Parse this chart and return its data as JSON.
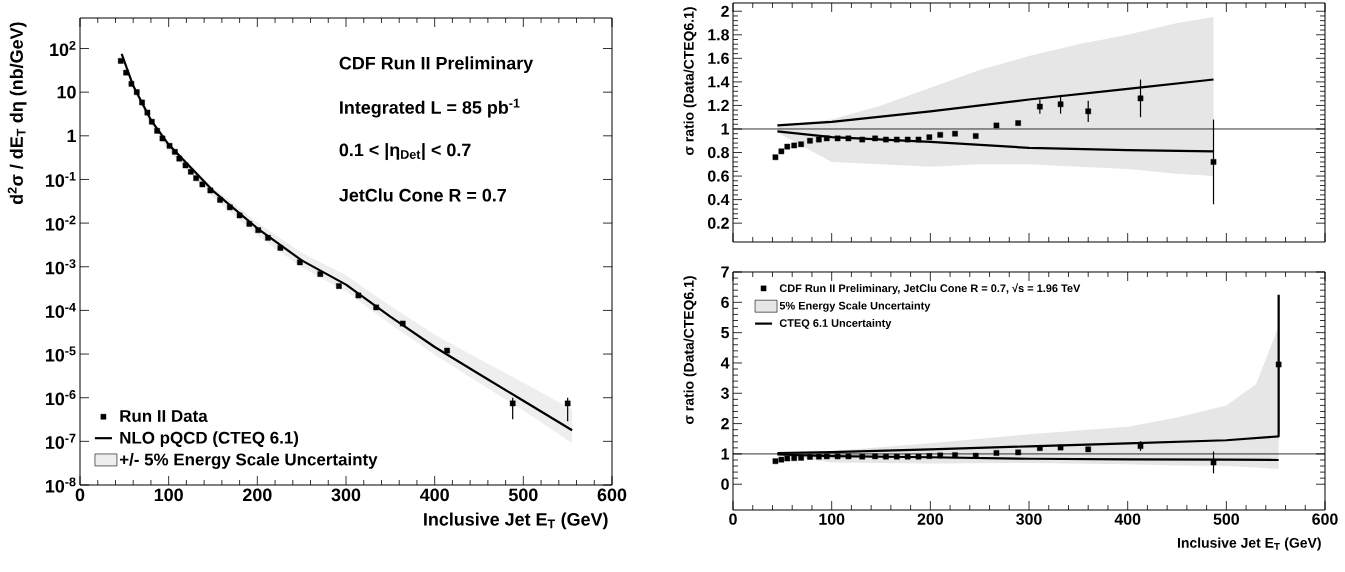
{
  "chart_data": [
    {
      "type": "scatter",
      "xlabel": "Inclusive Jet E$_{T}$ (GeV)",
      "ylabel": "d$^{2}$σ / dE$_{T}$ dη (nb/GeV)",
      "log": "y",
      "legend": "bottom left",
      "xlim": [
        0,
        600
      ],
      "xticks": [
        0,
        100,
        200,
        300,
        400,
        500,
        600
      ],
      "ylim": [
        1e-08,
        500
      ],
      "yticks": [
        {
          "value": 1e-08,
          "label": "10$^{-8}$"
        },
        {
          "value": 1e-07,
          "label": "10$^{-7}$"
        },
        {
          "value": 1e-06,
          "label": "10$^{-6}$"
        },
        {
          "value": 1e-05,
          "label": "10$^{-5}$"
        },
        {
          "value": 0.0001,
          "label": "10$^{-4}$"
        },
        {
          "value": 0.001,
          "label": "10$^{-3}$"
        },
        {
          "value": 0.01,
          "label": "10$^{-2}$"
        },
        {
          "value": 0.1,
          "label": "10$^{-1}$"
        },
        {
          "value": 1,
          "label": "1"
        },
        {
          "value": 10,
          "label": "10"
        },
        {
          "value": 100,
          "label": "10$^{2}$"
        }
      ],
      "annotations": [
        "CDF Run II Preliminary",
        "Integrated L = 85 pb$^{-1}$",
        "0.1 < |η$_{Det}$| < 0.7",
        "JetClu Cone R = 0.7"
      ],
      "series": [
        {
          "name": "Run II Data",
          "type": "scatter",
          "marker": "square",
          "color": "#000000",
          "x": [
            46,
            52,
            58,
            64,
            70,
            76,
            81,
            87,
            93,
            101,
            107,
            112,
            119,
            125,
            131,
            138,
            147,
            158,
            169,
            180,
            191,
            201,
            212,
            226,
            248,
            271,
            292,
            314,
            334,
            364,
            414,
            488,
            550
          ],
          "values": [
            52,
            28,
            15.5,
            10,
            5.8,
            3.4,
            2.1,
            1.3,
            0.87,
            0.59,
            0.43,
            0.3,
            0.21,
            0.15,
            0.107,
            0.077,
            0.056,
            0.034,
            0.023,
            0.015,
            0.0096,
            0.0069,
            0.0046,
            0.0027,
            0.00126,
            0.00068,
            0.00036,
            0.00022,
            0.000117,
            5e-05,
            1.2e-05,
            7.4e-07,
            7.4e-07
          ],
          "errors": [
            null,
            null,
            null,
            null,
            null,
            null,
            null,
            null,
            null,
            null,
            null,
            null,
            null,
            null,
            null,
            null,
            null,
            null,
            null,
            null,
            null,
            null,
            null,
            null,
            null,
            null,
            null,
            null,
            null,
            null,
            null,
            [
              3.2e-07,
              1e-06
            ],
            [
              2.9e-07,
              1e-06
            ]
          ]
        },
        {
          "name": "NLO pQCD (CTEQ 6.1)",
          "type": "line",
          "marker": "none",
          "line_style": "solid",
          "color": "#000000",
          "x": [
            47,
            60,
            80,
            100,
            150,
            200,
            250,
            300,
            350,
            400,
            450,
            500,
            555
          ],
          "values": [
            75,
            14,
            2.3,
            0.63,
            0.055,
            0.0076,
            0.0014,
            0.00039,
            7.2e-05,
            1.45e-05,
            3.5e-06,
            8.5e-07,
            1.8e-07
          ]
        },
        {
          "name": "+/- 5% Energy Scale Uncertainty",
          "type": "area",
          "color": "#eeeeee",
          "x": [
            47,
            60,
            80,
            100,
            150,
            200,
            250,
            300,
            350,
            400,
            450,
            500,
            555
          ],
          "values": [
            null,
            null,
            null,
            null,
            null,
            null,
            null,
            null,
            null,
            null,
            null,
            null,
            null
          ],
          "lower": [
            73,
            11.9,
            1.7,
            0.45,
            0.039,
            0.0052,
            0.00098,
            0.00027,
            4.9e-05,
            9.6e-06,
            2.2e-06,
            5.1e-07,
            9e-08
          ],
          "upper": [
            77,
            14.7,
            2.5,
            0.69,
            0.066,
            0.0103,
            0.0021,
            0.00064,
            0.000126,
            2.8e-05,
            7.7e-06,
            2.2e-06,
            5.4e-07
          ]
        }
      ]
    },
    {
      "type": "scatter",
      "ylabel": "σ ratio (Data/CTEQ6.1)",
      "tick_labels": "y",
      "legend": false,
      "xlim": [
        0,
        600
      ],
      "xticks": [
        0,
        100,
        200,
        300,
        400,
        500,
        600
      ],
      "ylim": [
        0.04,
        2.07
      ],
      "yticks": [
        0.2,
        0.4,
        0.6,
        0.8,
        1,
        1.2,
        1.4,
        1.6,
        1.8,
        2
      ],
      "ref_lines": [
        {
          "axis": "y",
          "value": 1
        }
      ],
      "series": [
        {
          "type": "area",
          "color": "#e6e6e6",
          "x": [
            45,
            100,
            150,
            200,
            250,
            300,
            350,
            400,
            450,
            487
          ],
          "values": [
            null,
            null,
            null,
            null,
            null,
            null,
            null,
            null,
            null,
            null
          ],
          "lower": [
            0.97,
            0.72,
            0.7,
            0.68,
            0.7,
            0.7,
            0.68,
            0.66,
            0.62,
            0.6
          ],
          "upper": [
            1.03,
            1.08,
            1.2,
            1.35,
            1.5,
            1.62,
            1.72,
            1.8,
            1.9,
            1.95
          ]
        },
        {
          "type": "line",
          "marker": "none",
          "line_style": "solid",
          "color": "#000000",
          "x": [
            45,
            100,
            200,
            300,
            400,
            487
          ],
          "values": [
            1.03,
            1.06,
            1.15,
            1.25,
            1.34,
            1.42
          ]
        },
        {
          "type": "line",
          "marker": "none",
          "line_style": "solid",
          "color": "#000000",
          "x": [
            45,
            100,
            200,
            300,
            400,
            487
          ],
          "values": [
            0.98,
            0.93,
            0.89,
            0.84,
            0.82,
            0.81
          ]
        },
        {
          "type": "scatter",
          "marker": "square",
          "color": "#000000",
          "x": [
            43,
            49,
            55,
            62,
            69,
            78,
            87,
            95,
            106,
            117,
            131,
            144,
            155,
            166,
            177,
            188,
            199,
            210,
            225,
            246,
            267,
            289,
            311,
            332,
            360,
            413,
            487
          ],
          "values": [
            0.76,
            0.81,
            0.85,
            0.86,
            0.87,
            0.9,
            0.91,
            0.92,
            0.92,
            0.92,
            0.91,
            0.92,
            0.91,
            0.91,
            0.91,
            0.91,
            0.93,
            0.95,
            0.96,
            0.94,
            1.03,
            1.05,
            1.19,
            1.21,
            1.15,
            1.26,
            0.72
          ],
          "errors": [
            null,
            null,
            null,
            null,
            null,
            null,
            null,
            null,
            null,
            null,
            null,
            null,
            null,
            null,
            null,
            null,
            null,
            null,
            null,
            null,
            null,
            null,
            0.06,
            0.08,
            0.09,
            0.16,
            0.36
          ]
        }
      ]
    },
    {
      "type": "scatter",
      "xlabel": "Inclusive Jet E$_{T}$ (GeV)",
      "ylabel": "σ ratio (Data/CTEQ6.1)",
      "legend": "top left",
      "xlim": [
        0,
        600
      ],
      "xticks": [
        0,
        100,
        200,
        300,
        400,
        500,
        600
      ],
      "ylim": [
        -0.85,
        7
      ],
      "yticks": [
        0,
        1,
        2,
        3,
        4,
        5,
        6,
        7
      ],
      "ref_lines": [
        {
          "axis": "y",
          "value": 1
        }
      ],
      "series": [
        {
          "name": "CDF Run II Preliminary, JetClu Cone R = 0.7,  √s = 1.96 TeV",
          "type": "scatter",
          "marker": "square",
          "color": "#000000",
          "x": [
            43,
            49,
            55,
            62,
            69,
            78,
            87,
            95,
            106,
            117,
            131,
            144,
            155,
            166,
            177,
            188,
            199,
            210,
            225,
            246,
            267,
            289,
            311,
            332,
            360,
            413,
            487,
            553
          ],
          "values": [
            0.76,
            0.81,
            0.85,
            0.86,
            0.87,
            0.9,
            0.91,
            0.92,
            0.92,
            0.92,
            0.91,
            0.92,
            0.91,
            0.91,
            0.91,
            0.91,
            0.93,
            0.95,
            0.96,
            0.94,
            1.03,
            1.05,
            1.19,
            1.21,
            1.15,
            1.26,
            0.72,
            3.95
          ],
          "errors": [
            null,
            null,
            null,
            null,
            null,
            null,
            null,
            null,
            null,
            null,
            null,
            null,
            null,
            null,
            null,
            null,
            null,
            null,
            null,
            null,
            null,
            null,
            0.06,
            0.08,
            0.09,
            0.16,
            0.36,
            2.25
          ]
        },
        {
          "name": "5% Energy Scale Uncertainty",
          "type": "area",
          "color": "#e6e6e6",
          "x": [
            45,
            100,
            200,
            300,
            400,
            450,
            500,
            530,
            553
          ],
          "values": [
            null,
            null,
            null,
            null,
            null,
            null,
            null,
            null,
            null
          ],
          "lower": [
            0.97,
            0.72,
            0.68,
            0.7,
            0.66,
            0.62,
            0.6,
            0.55,
            0.5
          ],
          "upper": [
            1.03,
            1.1,
            1.35,
            1.65,
            1.9,
            2.2,
            2.6,
            3.3,
            5.2
          ]
        },
        {
          "name": "CTEQ 6.1 Uncertainty",
          "type": "line",
          "marker": "none",
          "line_style": "solid",
          "color": "#000000",
          "x": [
            45,
            100,
            200,
            300,
            400,
            500,
            553,
            553
          ],
          "values": [
            1.03,
            1.06,
            1.15,
            1.25,
            1.35,
            1.45,
            1.58,
            6.25
          ]
        },
        {
          "type": "line",
          "marker": "none",
          "line_style": "solid",
          "color": "#000000",
          "x": [
            45,
            100,
            200,
            300,
            400,
            500,
            553
          ],
          "values": [
            0.98,
            0.93,
            0.89,
            0.84,
            0.82,
            0.81,
            0.8
          ]
        }
      ]
    }
  ]
}
